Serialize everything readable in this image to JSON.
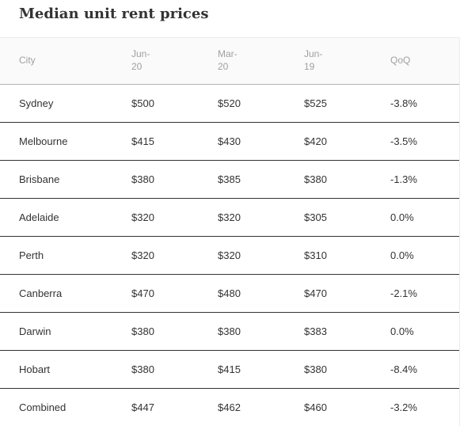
{
  "title": "Median unit rent prices",
  "chart_data": {
    "type": "table",
    "title": "Median unit rent prices",
    "columns": [
      {
        "line1": "City",
        "line2": ""
      },
      {
        "line1": "Jun-",
        "line2": "20"
      },
      {
        "line1": "Mar-",
        "line2": "20"
      },
      {
        "line1": "Jun-",
        "line2": "19"
      },
      {
        "line1": "QoQ",
        "line2": ""
      }
    ],
    "rows": [
      [
        "Sydney",
        "$500",
        "$520",
        "$525",
        "-3.8%"
      ],
      [
        "Melbourne",
        "$415",
        "$430",
        "$420",
        "-3.5%"
      ],
      [
        "Brisbane",
        "$380",
        "$385",
        "$380",
        "-1.3%"
      ],
      [
        "Adelaide",
        "$320",
        "$320",
        "$305",
        "0.0%"
      ],
      [
        "Perth",
        "$320",
        "$320",
        "$310",
        "0.0%"
      ],
      [
        "Canberra",
        "$470",
        "$480",
        "$470",
        "-2.1%"
      ],
      [
        "Darwin",
        "$380",
        "$380",
        "$383",
        "0.0%"
      ],
      [
        "Hobart",
        "$380",
        "$415",
        "$380",
        "-8.4%"
      ],
      [
        "Combined",
        "$447",
        "$462",
        "$460",
        "-3.2%"
      ]
    ]
  }
}
